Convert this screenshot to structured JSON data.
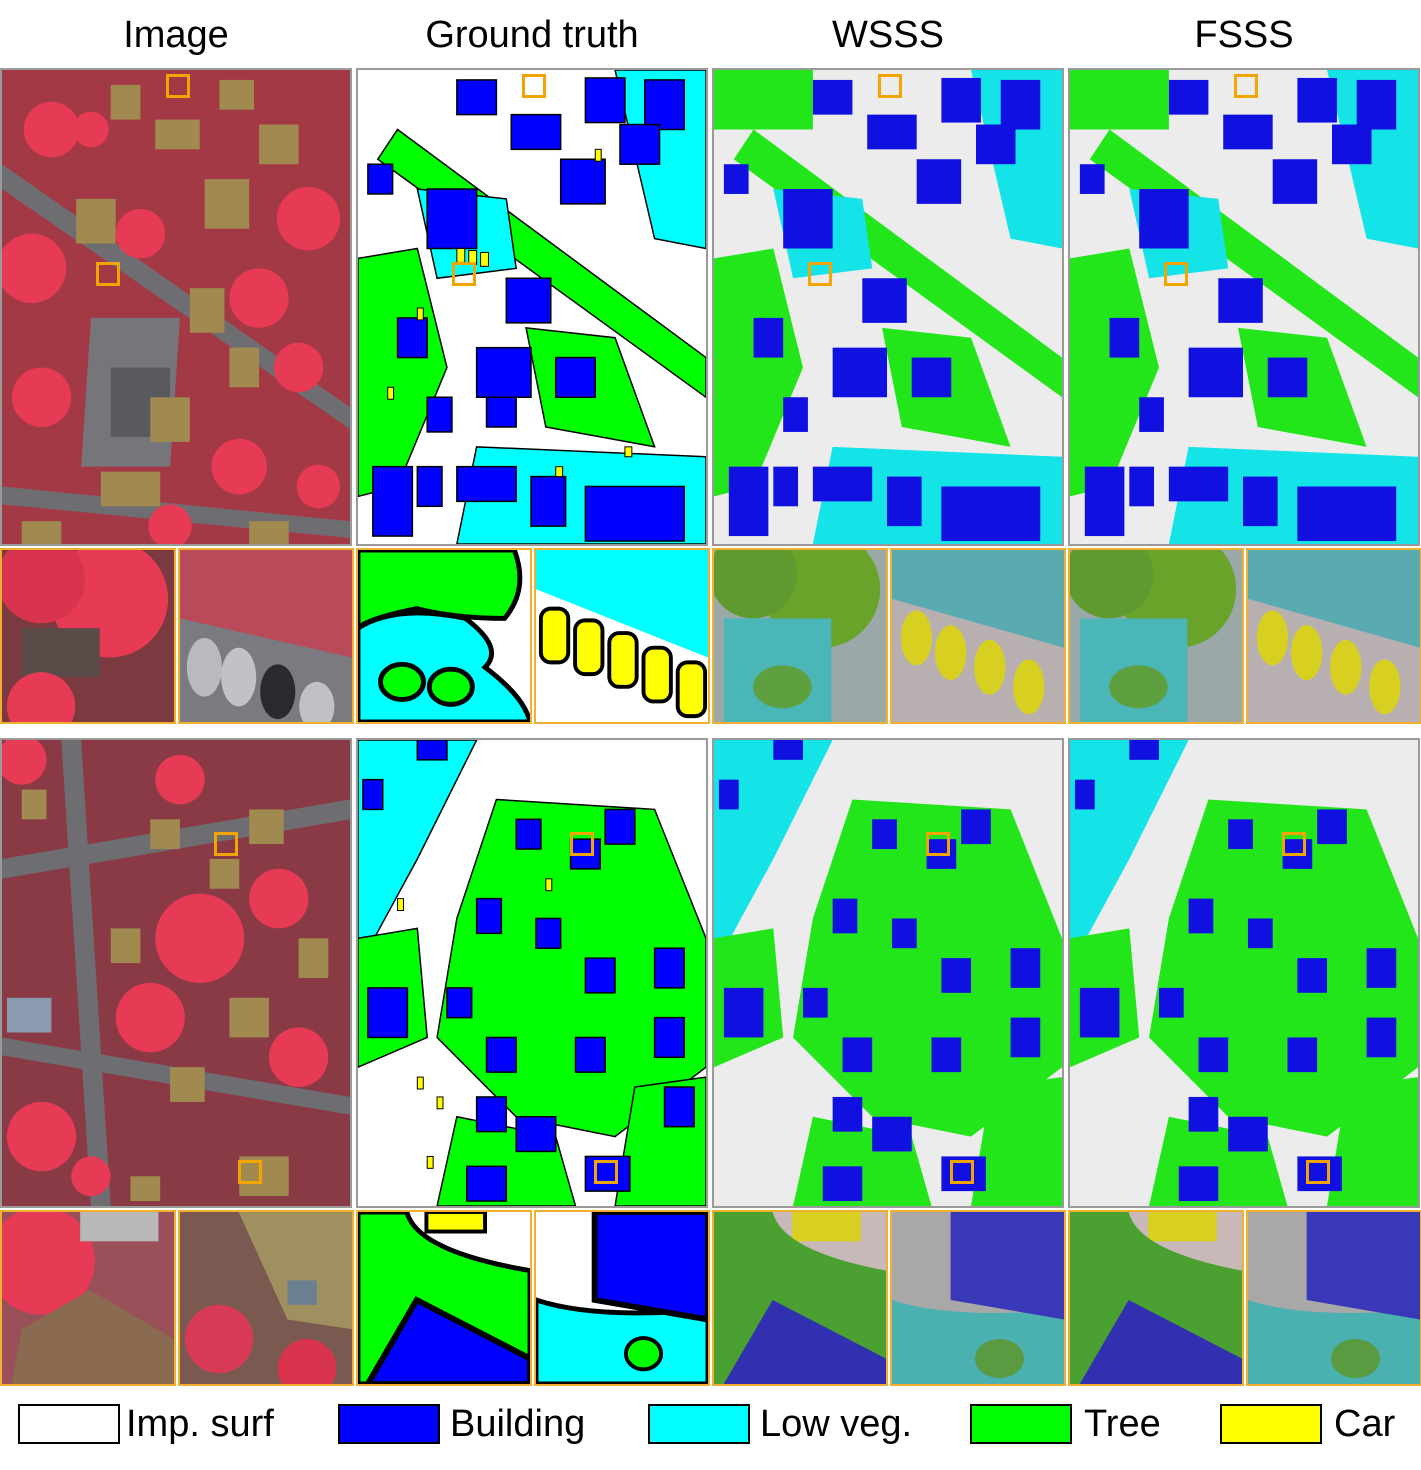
{
  "columns": [
    "Image",
    "Ground truth",
    "WSSS",
    "FSSS"
  ],
  "legend": [
    {
      "label": "Imp. surf",
      "color": "#ffffff"
    },
    {
      "label": "Building",
      "color": "#0000ff"
    },
    {
      "label": "Low veg.",
      "color": "#00ffff"
    },
    {
      "label": "Tree",
      "color": "#00ff00"
    },
    {
      "label": "Car",
      "color": "#ffff00"
    }
  ],
  "colors": {
    "marker": "#f2a500",
    "crop_border": "#f2b030",
    "panel_border": "#9a9a9a",
    "ir_red": "#d9324a",
    "ir_road": "#6e6e72",
    "ir_roof": "#a08a50"
  }
}
